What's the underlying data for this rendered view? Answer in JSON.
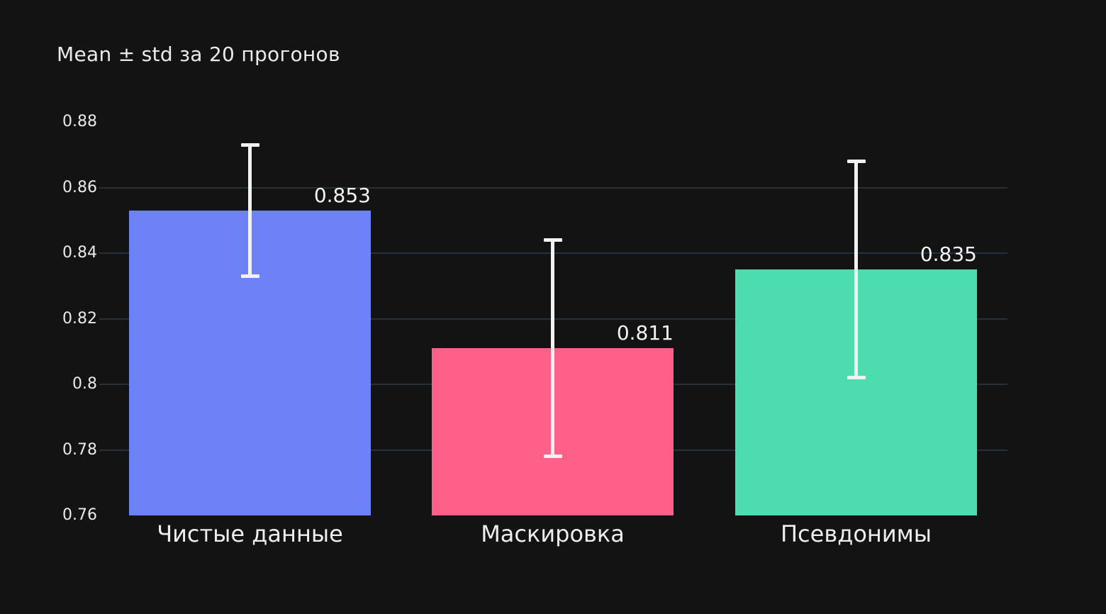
{
  "page": {
    "background": "#131314",
    "text_color": "#ebebed"
  },
  "chart_data": {
    "type": "bar",
    "title": "Mean ± std за 20 прогонов",
    "categories": [
      "Чистые данные",
      "Маскировка",
      "Псевдонимы"
    ],
    "series": [
      {
        "name": "mean",
        "values": [
          0.853,
          0.811,
          0.835
        ],
        "errors": [
          0.02,
          0.033,
          0.033
        ]
      }
    ],
    "value_labels": [
      "0.853",
      "0.811",
      "0.835"
    ],
    "bar_colors": [
      "#6d82f7",
      "#fd5f88",
      "#4cdcae"
    ],
    "y_tick_labels": [
      "0.88",
      "0.86",
      "0.84",
      "0.82",
      "0.8",
      "0.78",
      "0.76"
    ],
    "y_tick_values": [
      0.88,
      0.86,
      0.84,
      0.82,
      0.8,
      0.78,
      0.76
    ],
    "gridline_values": [
      0.86,
      0.84,
      0.82,
      0.8,
      0.78
    ],
    "ylim": [
      0.76,
      0.88
    ],
    "xlabel": "",
    "ylabel": "",
    "grid": true,
    "legend_position": "none",
    "error_bar_color": "#f2f2f2",
    "gridline_color": "#272f3c",
    "value_label_color": "#f5f5f6",
    "tick_label_color": "#e9e9eb",
    "category_label_color": "#eeeeef"
  }
}
